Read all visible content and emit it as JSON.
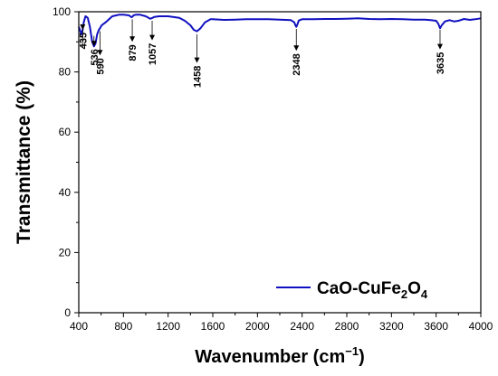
{
  "chart_data": {
    "type": "line",
    "xlabel": "Wavenumber (cm⁻¹)",
    "xlabel_main": "Wavenumber (cm",
    "xlabel_sup": "−1",
    "xlabel_close": ")",
    "ylabel": "Transmittance (%)",
    "xlim": [
      400,
      4000
    ],
    "ylim": [
      0,
      100
    ],
    "x_ticks": [
      400,
      800,
      1200,
      1600,
      2000,
      2400,
      2800,
      3200,
      3600,
      4000
    ],
    "y_ticks": [
      0,
      20,
      40,
      60,
      80,
      100
    ],
    "grid": false,
    "legend_position": "bottom-right",
    "series": [
      {
        "name": "CaO-CuFe2O4",
        "name_parts": {
          "a": "CaO-CuFe",
          "sub1": "2",
          "b": "O",
          "sub2": "4"
        },
        "color": "#1010c0",
        "x": [
          400,
          415,
          425,
          435,
          445,
          460,
          480,
          500,
          520,
          536,
          550,
          565,
          580,
          590,
          605,
          640,
          700,
          760,
          800,
          850,
          870,
          879,
          890,
          910,
          950,
          1000,
          1040,
          1057,
          1075,
          1120,
          1200,
          1300,
          1350,
          1400,
          1430,
          1458,
          1490,
          1530,
          1580,
          1600,
          1700,
          1800,
          1900,
          2000,
          2100,
          2200,
          2300,
          2330,
          2340,
          2348,
          2356,
          2370,
          2400,
          2500,
          2600,
          2700,
          2800,
          2900,
          3000,
          3100,
          3200,
          3300,
          3400,
          3500,
          3550,
          3600,
          3620,
          3635,
          3650,
          3680,
          3720,
          3760,
          3800,
          3850,
          3900,
          3950,
          4000
        ],
        "y": [
          95,
          93.5,
          92.5,
          94,
          96.5,
          98.5,
          98,
          95,
          90,
          88.5,
          89.5,
          92.5,
          94,
          94.5,
          95.5,
          96.5,
          98.5,
          99,
          99,
          98.8,
          98.2,
          98.3,
          98.8,
          99,
          99,
          98.5,
          97.7,
          97.9,
          98.3,
          98.5,
          98.5,
          98,
          97,
          95.5,
          94,
          93.5,
          94.5,
          96.5,
          97.5,
          97.5,
          97.3,
          97.4,
          97.5,
          97.5,
          97.5,
          97.4,
          97.2,
          96.5,
          95.5,
          95,
          95.6,
          97.1,
          97.5,
          97.5,
          97.6,
          97.6,
          97.7,
          97.8,
          97.6,
          97.5,
          97.6,
          97.5,
          97.4,
          97.4,
          97.2,
          97,
          96,
          94.5,
          95.5,
          96.8,
          97.2,
          96.8,
          97,
          97.6,
          97.3,
          97.5,
          97.8
        ]
      }
    ],
    "annotations": [
      {
        "label": "435",
        "x": 435,
        "y_point": 94,
        "y_tail": 88
      },
      {
        "label": "536",
        "x": 536,
        "y_point": 88.5,
        "y_tail": 92
      },
      {
        "label": "590",
        "x": 590,
        "y_point": 85.5,
        "y_tail": 93.5
      },
      {
        "label": "879",
        "x": 879,
        "y_point": 90,
        "y_tail": 97.5
      },
      {
        "label": "1057",
        "x": 1057,
        "y_point": 90.5,
        "y_tail": 97
      },
      {
        "label": "1458",
        "x": 1458,
        "y_point": 83,
        "y_tail": 92.5
      },
      {
        "label": "2348",
        "x": 2348,
        "y_point": 87,
        "y_tail": 94.3
      },
      {
        "label": "3635",
        "x": 3635,
        "y_point": 87.5,
        "y_tail": 94
      }
    ]
  }
}
